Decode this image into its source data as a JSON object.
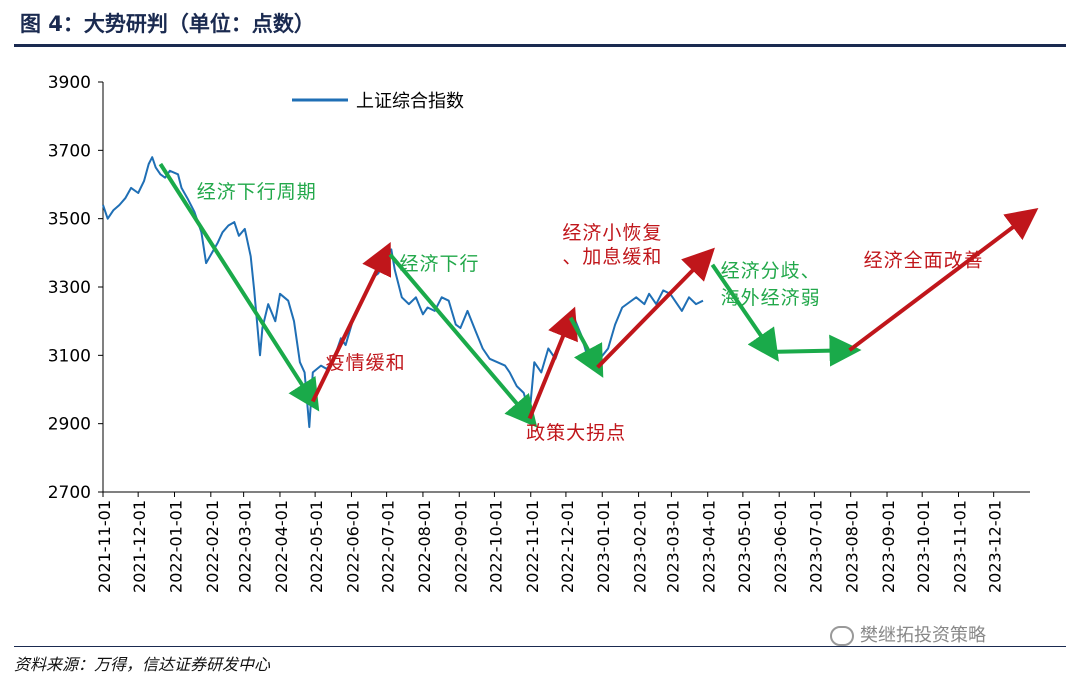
{
  "header": {
    "title": "图 4：大势研判（单位：点数）"
  },
  "source": "资料来源：万得，信达证券研发中心",
  "watermark": "樊继拓投资策略",
  "colors": {
    "index_line": "#1f6fb5",
    "green_arrow": "#1aaa4a",
    "red_arrow": "#c0161b",
    "green_text": "#22a84a",
    "red_text": "#c0161b",
    "title": "#1a2a50"
  },
  "chart_data": {
    "type": "line",
    "title": "",
    "xlabel": "",
    "ylabel": "",
    "ylim": [
      2700,
      3900
    ],
    "yticks": [
      2700,
      2900,
      3100,
      3300,
      3500,
      3700,
      3900
    ],
    "xticks": [
      "2021-11-01",
      "2021-12-01",
      "2022-01-01",
      "2022-02-01",
      "2022-03-01",
      "2022-04-01",
      "2022-05-01",
      "2022-06-01",
      "2022-07-01",
      "2022-08-01",
      "2022-09-01",
      "2022-10-01",
      "2022-11-01",
      "2022-12-01",
      "2023-01-01",
      "2023-02-01",
      "2023-03-01",
      "2023-04-01",
      "2023-05-01",
      "2023-06-01",
      "2023-07-01",
      "2023-08-01",
      "2023-09-01",
      "2023-10-01",
      "2023-11-01",
      "2023-12-01"
    ],
    "legend": {
      "position": "top-left",
      "entries": [
        "上证综合指数"
      ]
    },
    "series": [
      {
        "name": "上证综合指数",
        "x": [
          "2021-11-01",
          "2021-11-05",
          "2021-11-10",
          "2021-11-15",
          "2021-11-20",
          "2021-11-25",
          "2021-12-01",
          "2021-12-06",
          "2021-12-10",
          "2021-12-13",
          "2021-12-16",
          "2021-12-20",
          "2021-12-24",
          "2021-12-28",
          "2022-01-04",
          "2022-01-07",
          "2022-01-12",
          "2022-01-18",
          "2022-01-24",
          "2022-01-28",
          "2022-02-07",
          "2022-02-11",
          "2022-02-16",
          "2022-02-21",
          "2022-02-25",
          "2022-03-02",
          "2022-03-07",
          "2022-03-10",
          "2022-03-15",
          "2022-03-17",
          "2022-03-22",
          "2022-03-28",
          "2022-04-01",
          "2022-04-08",
          "2022-04-13",
          "2022-04-18",
          "2022-04-22",
          "2022-04-26",
          "2022-04-29",
          "2022-05-06",
          "2022-05-11",
          "2022-05-17",
          "2022-05-23",
          "2022-05-27",
          "2022-06-02",
          "2022-06-08",
          "2022-06-14",
          "2022-06-20",
          "2022-06-24",
          "2022-06-30",
          "2022-07-05",
          "2022-07-08",
          "2022-07-14",
          "2022-07-20",
          "2022-07-26",
          "2022-08-01",
          "2022-08-05",
          "2022-08-11",
          "2022-08-17",
          "2022-08-23",
          "2022-08-29",
          "2022-09-02",
          "2022-09-08",
          "2022-09-15",
          "2022-09-21",
          "2022-09-27",
          "2022-10-10",
          "2022-10-14",
          "2022-10-20",
          "2022-10-26",
          "2022-10-31",
          "2022-11-04",
          "2022-11-10",
          "2022-11-16",
          "2022-11-22",
          "2022-11-28",
          "2022-12-02",
          "2022-12-08",
          "2022-12-14",
          "2022-12-20",
          "2022-12-26",
          "2022-12-30",
          "2023-01-06",
          "2023-01-12",
          "2023-01-18",
          "2023-01-30",
          "2023-02-06",
          "2023-02-10",
          "2023-02-16",
          "2023-02-22",
          "2023-02-28",
          "2023-03-06",
          "2023-03-10",
          "2023-03-16",
          "2023-03-22",
          "2023-03-28"
        ],
        "values": [
          3540,
          3500,
          3525,
          3540,
          3560,
          3590,
          3575,
          3610,
          3660,
          3680,
          3650,
          3630,
          3620,
          3640,
          3630,
          3590,
          3560,
          3520,
          3460,
          3370,
          3430,
          3460,
          3480,
          3490,
          3450,
          3470,
          3390,
          3290,
          3100,
          3180,
          3250,
          3200,
          3280,
          3260,
          3200,
          3080,
          3050,
          2890,
          3050,
          3070,
          3060,
          3090,
          3150,
          3130,
          3200,
          3250,
          3290,
          3330,
          3340,
          3390,
          3410,
          3350,
          3270,
          3250,
          3270,
          3220,
          3240,
          3230,
          3270,
          3260,
          3190,
          3180,
          3230,
          3170,
          3120,
          3090,
          3070,
          3050,
          3010,
          2990,
          2930,
          3080,
          3050,
          3120,
          3090,
          3150,
          3180,
          3210,
          3160,
          3090,
          3070,
          3090,
          3120,
          3190,
          3240,
          3270,
          3250,
          3280,
          3250,
          3290,
          3280,
          3250,
          3230,
          3270,
          3250,
          3260
        ]
      }
    ],
    "arrows": [
      {
        "color": "green",
        "from": [
          "2021-12-20",
          3660
        ],
        "to": [
          "2022-04-29",
          2965
        ]
      },
      {
        "color": "red",
        "from": [
          "2022-04-29",
          2965
        ],
        "to": [
          "2022-06-30",
          3400
        ]
      },
      {
        "color": "green",
        "from": [
          "2022-07-04",
          3395
        ],
        "to": [
          "2022-10-31",
          2915
        ]
      },
      {
        "color": "red",
        "from": [
          "2022-10-31",
          2915
        ],
        "to": [
          "2022-12-05",
          3210
        ]
      },
      {
        "color": "green",
        "from": [
          "2022-12-05",
          3210
        ],
        "to": [
          "2022-12-28",
          3065
        ]
      },
      {
        "color": "red",
        "from": [
          "2022-12-28",
          3065
        ],
        "to": [
          "2023-03-31",
          3390
        ]
      },
      {
        "color": "green",
        "from": [
          "2023-04-05",
          3365
        ],
        "to": [
          "2023-05-26",
          3110
        ]
      },
      {
        "color": "green",
        "from": [
          "2023-05-26",
          3110
        ],
        "to": [
          "2023-07-31",
          3115
        ]
      },
      {
        "color": "red",
        "from": [
          "2023-07-31",
          3115
        ],
        "to": [
          "2023-12-31",
          3510
        ]
      }
    ],
    "annotations": [
      {
        "text": "经济下行周期",
        "color": "green"
      },
      {
        "text": "疫情缓和",
        "color": "red"
      },
      {
        "text": "经济下行",
        "color": "green"
      },
      {
        "text": "政策大拐点",
        "color": "red"
      },
      {
        "text": "经济小恢复",
        "color": "red"
      },
      {
        "text": "、加息缓和",
        "color": "red"
      },
      {
        "text": "经济分歧、",
        "color": "green"
      },
      {
        "text": "海外经济弱",
        "color": "green"
      },
      {
        "text": "经济全面改善",
        "color": "red"
      }
    ]
  }
}
